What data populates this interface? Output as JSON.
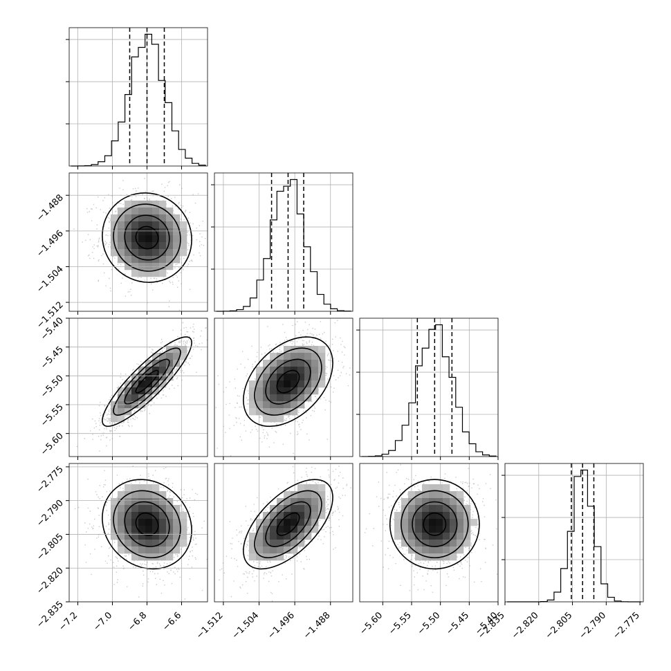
{
  "chart_data": {
    "type": "corner",
    "parameters": [
      {
        "mean": -6.8,
        "sd": 0.1,
        "quantiles": [
          -6.9,
          -6.8,
          -6.7
        ],
        "range": [
          -7.25,
          -6.45
        ],
        "ticks": [
          -7.2,
          -7.0,
          -6.8,
          -6.6
        ],
        "tick_labels": [
          "−7.2",
          "−7.0",
          "−6.8",
          "−6.6"
        ]
      },
      {
        "mean": -1.4975,
        "sd": 0.0036,
        "quantiles": [
          -1.5012,
          -1.4975,
          -1.494
        ],
        "range": [
          -1.514,
          -1.483
        ],
        "ticks": [
          -1.512,
          -1.504,
          -1.496,
          -1.488
        ],
        "tick_labels": [
          "−1.512",
          "−1.504",
          "−1.496",
          "−1.488"
        ]
      },
      {
        "mean": -5.51,
        "sd": 0.03,
        "quantiles": [
          -5.54,
          -5.51,
          -5.48
        ],
        "range": [
          -5.64,
          -5.4
        ],
        "ticks": [
          -5.6,
          -5.55,
          -5.5,
          -5.45,
          -5.4
        ],
        "tick_labels": [
          "−5.60",
          "−5.55",
          "−5.50",
          "−5.45",
          "−5.40"
        ]
      },
      {
        "mean": -2.8005,
        "sd": 0.0048,
        "quantiles": [
          -2.8055,
          -2.8005,
          -2.7955
        ],
        "range": [
          -2.835,
          -2.7735
        ],
        "ticks": [
          -2.835,
          -2.82,
          -2.805,
          -2.79,
          -2.775
        ],
        "tick_labels": [
          "−2.835",
          "−2.820",
          "−2.805",
          "−2.790",
          "−2.775"
        ]
      }
    ],
    "correlations": [
      [
        1.0,
        -0.05,
        0.95,
        -0.15
      ],
      [
        -0.05,
        1.0,
        0.45,
        0.65
      ],
      [
        0.95,
        0.45,
        1.0,
        0.0
      ],
      [
        -0.15,
        0.65,
        0.0,
        1.0
      ]
    ],
    "hist_bins": 20,
    "contour_levels_sigma": [
      0.5,
      1.0,
      1.5,
      2.0
    ],
    "grid": true
  }
}
